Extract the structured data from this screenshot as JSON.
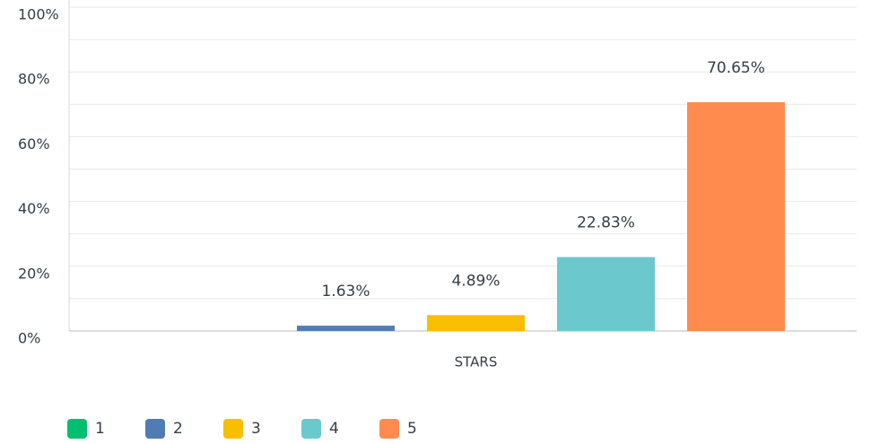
{
  "chart_data": {
    "type": "bar",
    "categories": [
      "STARS"
    ],
    "series": [
      {
        "name": "1",
        "color": "#00bf6f",
        "values": [
          0
        ],
        "value_labels": [
          null
        ]
      },
      {
        "name": "2",
        "color": "#507cb6",
        "values": [
          1.63
        ],
        "value_labels": [
          "1.63%"
        ]
      },
      {
        "name": "3",
        "color": "#f9be00",
        "values": [
          4.89
        ],
        "value_labels": [
          "4.89%"
        ]
      },
      {
        "name": "4",
        "color": "#6bc8cd",
        "values": [
          22.83
        ],
        "value_labels": [
          "22.83%"
        ]
      },
      {
        "name": "5",
        "color": "#ff8b4f",
        "values": [
          70.65
        ],
        "value_labels": [
          "70.65%"
        ]
      }
    ],
    "ylim": [
      0,
      100
    ],
    "yticks": [
      {
        "value": 0,
        "label": "0%"
      },
      {
        "value": 20,
        "label": "20%"
      },
      {
        "value": 40,
        "label": "40%"
      },
      {
        "value": 60,
        "label": "60%"
      },
      {
        "value": 80,
        "label": "80%"
      },
      {
        "value": 100,
        "label": "100%"
      }
    ],
    "minor_yticks": [
      10,
      30,
      50,
      70,
      90
    ],
    "grid": true,
    "legend": "bottom-left"
  }
}
